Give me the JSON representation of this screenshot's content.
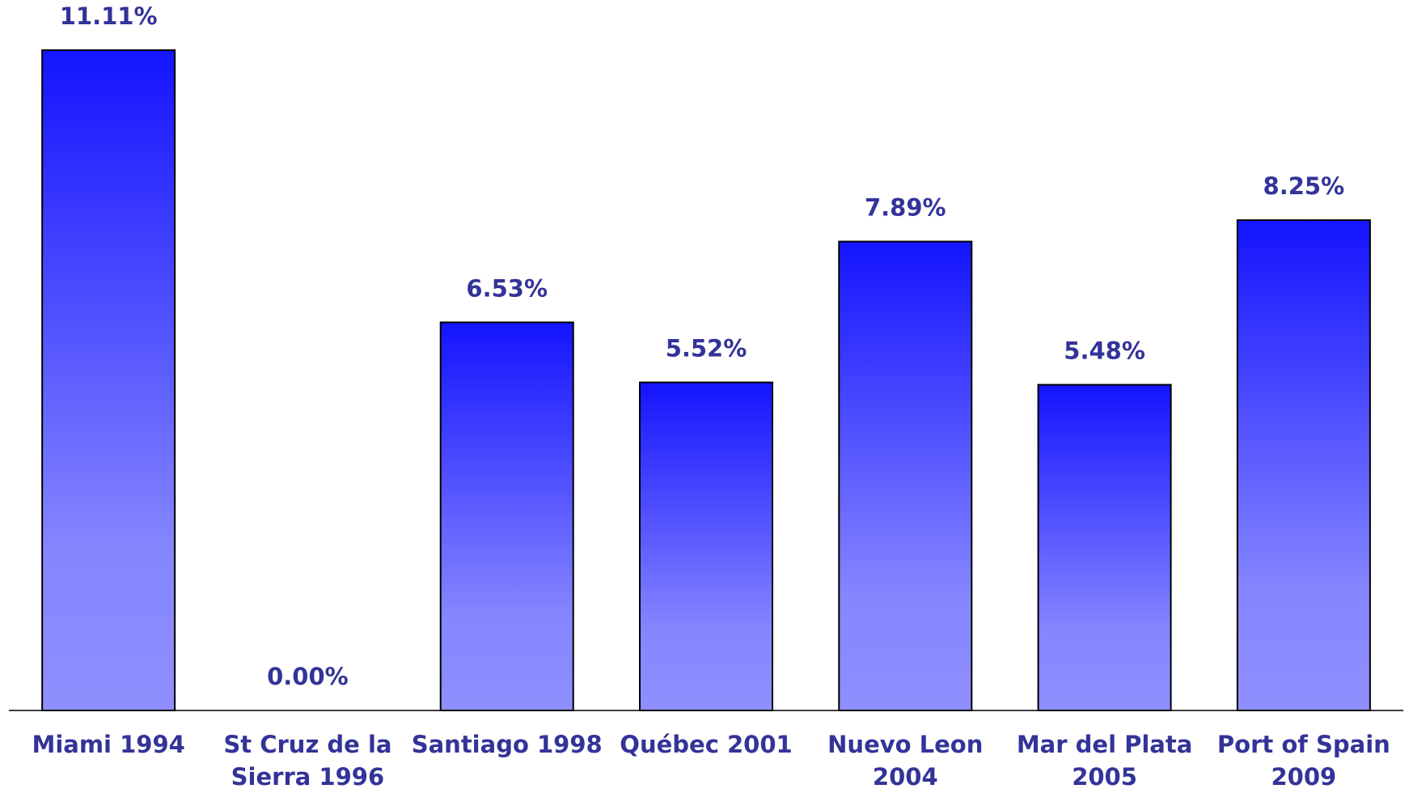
{
  "chart_data": {
    "type": "bar",
    "categories": [
      "Miami 1994",
      "St Cruz de la\nSierra 1996",
      "Santiago 1998",
      "Québec 2001",
      "Nuevo Leon\n2004",
      "Mar del Plata\n2005",
      "Port of Spain\n2009"
    ],
    "values": [
      11.11,
      0.0,
      6.53,
      5.52,
      7.89,
      5.48,
      8.25
    ],
    "value_labels": [
      "11.11%",
      "0.00%",
      "6.53%",
      "5.52%",
      "7.89%",
      "5.48%",
      "8.25%"
    ],
    "color": "#1414ff"
  }
}
